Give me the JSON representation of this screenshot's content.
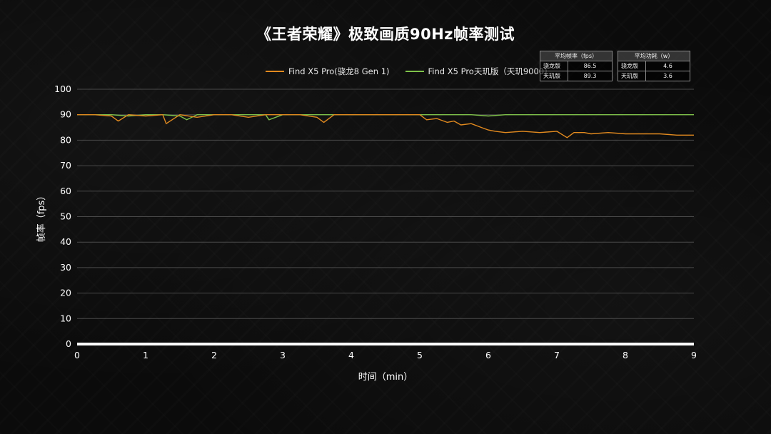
{
  "title": "《王者荣耀》极致画质90Hz帧率测试",
  "colors": {
    "series_orange": "#e28a1f",
    "series_green": "#7fc24a",
    "grid": "#4a4a4a",
    "axis": "#ffffff"
  },
  "tables": {
    "fps": {
      "header": "平均帧率（fps）",
      "rows": [
        {
          "label": "骁龙版",
          "value": "86.5"
        },
        {
          "label": "天玑版",
          "value": "89.3"
        }
      ]
    },
    "power": {
      "header": "平均功耗（w）",
      "rows": [
        {
          "label": "骁龙版",
          "value": "4.6"
        },
        {
          "label": "天玑版",
          "value": "3.6"
        }
      ]
    }
  },
  "chart_data": {
    "type": "line",
    "title": "《王者荣耀》极致画质90Hz帧率测试",
    "xlabel": "时间（min）",
    "ylabel": "帧率（fps）",
    "xlim": [
      0,
      9
    ],
    "ylim": [
      0,
      100
    ],
    "x_ticks": [
      "0",
      "1",
      "2",
      "3",
      "4",
      "5",
      "6",
      "7",
      "8",
      "9"
    ],
    "y_ticks": [
      "0",
      "10",
      "20",
      "30",
      "40",
      "50",
      "60",
      "70",
      "80",
      "90",
      "100"
    ],
    "grid": true,
    "legend_position": "top",
    "series": [
      {
        "name": "Find X5 Pro(骁龙8 Gen 1)",
        "x": [
          0,
          0.25,
          0.5,
          0.6,
          0.75,
          1,
          1.25,
          1.3,
          1.5,
          1.75,
          2,
          2.25,
          2.5,
          2.75,
          3,
          3.25,
          3.5,
          3.6,
          3.75,
          4,
          4.25,
          4.5,
          4.75,
          5,
          5.1,
          5.25,
          5.4,
          5.5,
          5.6,
          5.75,
          5.9,
          6,
          6.1,
          6.25,
          6.5,
          6.75,
          7,
          7.15,
          7.25,
          7.4,
          7.5,
          7.75,
          8,
          8.25,
          8.5,
          8.75,
          9
        ],
        "values": [
          90,
          90,
          89.5,
          87.5,
          90,
          89.5,
          90,
          86.5,
          90,
          89,
          90,
          90,
          89,
          90,
          90,
          90,
          89,
          87,
          90,
          90,
          90,
          90,
          90,
          90,
          88,
          88.5,
          87,
          87.5,
          86,
          86.5,
          85,
          84,
          83.5,
          83,
          83.5,
          83,
          83.5,
          81,
          83,
          83,
          82.5,
          83,
          82.5,
          82.5,
          82.5,
          82,
          82
        ]
      },
      {
        "name": "Find X5 Pro天玑版（天玑9000）",
        "x": [
          0,
          0.25,
          0.5,
          0.75,
          1,
          1.25,
          1.5,
          1.6,
          1.75,
          2,
          2.25,
          2.5,
          2.75,
          2.8,
          3,
          3.25,
          3.5,
          3.75,
          4,
          4.25,
          4.5,
          4.75,
          5,
          5.25,
          5.5,
          5.75,
          6,
          6.25,
          6.5,
          6.75,
          7,
          7.25,
          7.5,
          7.75,
          8,
          8.25,
          8.5,
          8.75,
          9
        ],
        "values": [
          90,
          90,
          90,
          89.5,
          90,
          90,
          89.5,
          88,
          90,
          90,
          90,
          90,
          90,
          88,
          90,
          90,
          90,
          90,
          90,
          90,
          90,
          90,
          90,
          90,
          90,
          90,
          89.5,
          90,
          90,
          90,
          90,
          90,
          90,
          90,
          90,
          90,
          90,
          90,
          90
        ]
      }
    ]
  }
}
